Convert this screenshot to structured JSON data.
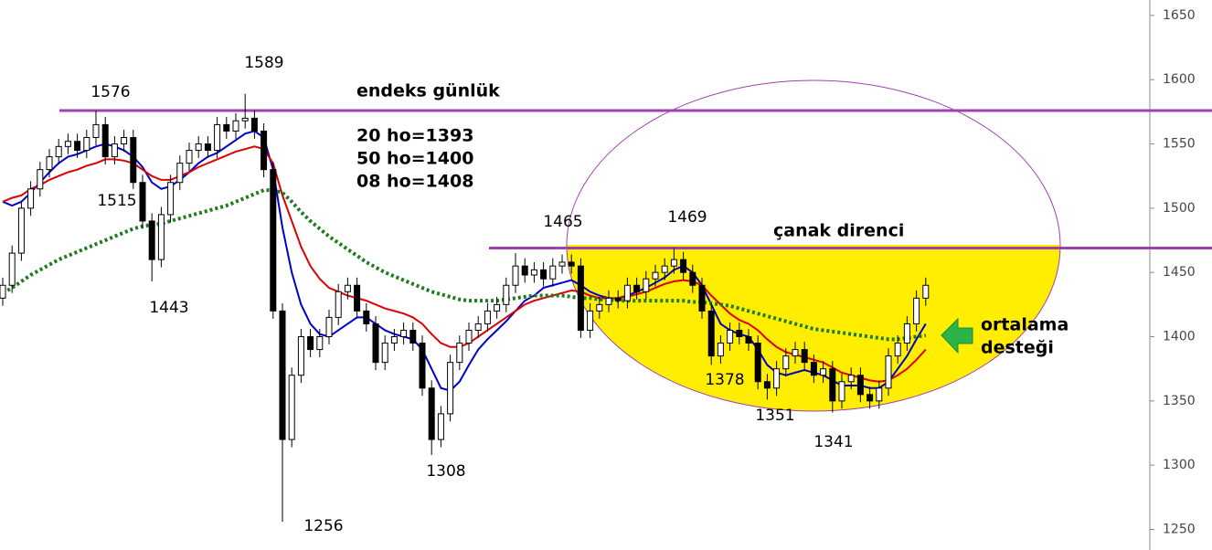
{
  "chart_data": {
    "type": "candlestick",
    "open": [
      1430,
      1440,
      1465,
      1500,
      1515,
      1530,
      1540,
      1548,
      1552,
      1545,
      1555,
      1565,
      1540,
      1550,
      1555,
      1520,
      1490,
      1460,
      1495,
      1520,
      1535,
      1545,
      1550,
      1545,
      1565,
      1560,
      1568,
      1570,
      1560,
      1530,
      1420,
      1320,
      1370,
      1400,
      1390,
      1400,
      1415,
      1435,
      1440,
      1420,
      1410,
      1380,
      1395,
      1400,
      1405,
      1395,
      1360,
      1320,
      1340,
      1380,
      1395,
      1405,
      1410,
      1420,
      1425,
      1440,
      1455,
      1448,
      1452,
      1445,
      1455,
      1458,
      1455,
      1405,
      1420,
      1425,
      1430,
      1428,
      1440,
      1435,
      1445,
      1450,
      1455,
      1460,
      1450,
      1440,
      1420,
      1385,
      1395,
      1405,
      1400,
      1395,
      1365,
      1360,
      1375,
      1385,
      1390,
      1380,
      1370,
      1375,
      1350,
      1365,
      1370,
      1355,
      1350,
      1360,
      1385,
      1395,
      1410,
      1430
    ],
    "high": [
      1446,
      1471,
      1506,
      1521,
      1536,
      1546,
      1554,
      1558,
      1558,
      1561,
      1576,
      1571,
      1556,
      1561,
      1561,
      1526,
      1496,
      1501,
      1526,
      1541,
      1551,
      1556,
      1556,
      1571,
      1571,
      1574,
      1589,
      1576,
      1566,
      1536,
      1426,
      1376,
      1406,
      1406,
      1406,
      1421,
      1441,
      1446,
      1446,
      1426,
      1416,
      1401,
      1406,
      1411,
      1411,
      1401,
      1366,
      1346,
      1386,
      1401,
      1411,
      1416,
      1426,
      1431,
      1446,
      1465,
      1461,
      1458,
      1458,
      1461,
      1464,
      1464,
      1461,
      1426,
      1431,
      1436,
      1436,
      1446,
      1446,
      1451,
      1456,
      1461,
      1469,
      1466,
      1456,
      1446,
      1426,
      1401,
      1411,
      1411,
      1406,
      1401,
      1371,
      1381,
      1391,
      1396,
      1396,
      1386,
      1381,
      1381,
      1371,
      1376,
      1376,
      1361,
      1366,
      1391,
      1401,
      1416,
      1436,
      1446
    ],
    "low": [
      1424,
      1434,
      1459,
      1494,
      1509,
      1524,
      1534,
      1542,
      1539,
      1539,
      1549,
      1534,
      1534,
      1544,
      1515,
      1484,
      1443,
      1454,
      1489,
      1514,
      1529,
      1539,
      1539,
      1539,
      1554,
      1554,
      1562,
      1554,
      1524,
      1414,
      1256,
      1314,
      1364,
      1384,
      1384,
      1394,
      1409,
      1429,
      1414,
      1404,
      1374,
      1374,
      1389,
      1394,
      1389,
      1354,
      1308,
      1314,
      1334,
      1374,
      1389,
      1399,
      1404,
      1414,
      1419,
      1434,
      1442,
      1442,
      1439,
      1439,
      1449,
      1449,
      1399,
      1399,
      1414,
      1419,
      1422,
      1422,
      1429,
      1429,
      1439,
      1444,
      1449,
      1444,
      1434,
      1414,
      1378,
      1379,
      1389,
      1394,
      1389,
      1359,
      1351,
      1354,
      1369,
      1379,
      1374,
      1364,
      1364,
      1341,
      1344,
      1359,
      1349,
      1344,
      1344,
      1354,
      1379,
      1389,
      1404,
      1424
    ],
    "close": [
      1440,
      1465,
      1500,
      1515,
      1530,
      1540,
      1548,
      1552,
      1545,
      1555,
      1565,
      1540,
      1550,
      1555,
      1520,
      1490,
      1460,
      1495,
      1520,
      1535,
      1545,
      1550,
      1545,
      1565,
      1560,
      1568,
      1570,
      1560,
      1530,
      1420,
      1320,
      1370,
      1400,
      1390,
      1400,
      1415,
      1435,
      1440,
      1420,
      1410,
      1380,
      1395,
      1400,
      1405,
      1395,
      1360,
      1320,
      1340,
      1380,
      1395,
      1405,
      1410,
      1420,
      1425,
      1440,
      1455,
      1448,
      1452,
      1445,
      1455,
      1458,
      1455,
      1405,
      1420,
      1425,
      1430,
      1428,
      1440,
      1435,
      1445,
      1450,
      1455,
      1460,
      1450,
      1440,
      1420,
      1385,
      1395,
      1405,
      1400,
      1395,
      1365,
      1360,
      1375,
      1385,
      1390,
      1380,
      1370,
      1375,
      1350,
      1365,
      1370,
      1355,
      1350,
      1360,
      1385,
      1395,
      1410,
      1430,
      1440
    ],
    "up_color": "#ffffff",
    "down_color": "#000000",
    "ma": [
      {
        "color": "#0000cc",
        "dashed": false,
        "values": [
          1505,
          1502,
          1505,
          1512,
          1520,
          1528,
          1535,
          1540,
          1542,
          1545,
          1548,
          1550,
          1548,
          1545,
          1540,
          1532,
          1520,
          1515,
          1517,
          1522,
          1528,
          1535,
          1540,
          1543,
          1548,
          1553,
          1558,
          1560,
          1555,
          1530,
          1485,
          1450,
          1425,
          1410,
          1402,
          1400,
          1405,
          1410,
          1415,
          1415,
          1410,
          1405,
          1402,
          1400,
          1398,
          1390,
          1375,
          1360,
          1358,
          1365,
          1378,
          1390,
          1398,
          1405,
          1412,
          1420,
          1428,
          1432,
          1438,
          1440,
          1442,
          1444,
          1440,
          1435,
          1432,
          1430,
          1430,
          1432,
          1435,
          1438,
          1442,
          1446,
          1452,
          1455,
          1450,
          1440,
          1425,
          1410,
          1405,
          1402,
          1400,
          1390,
          1378,
          1372,
          1370,
          1372,
          1374,
          1372,
          1370,
          1366,
          1362,
          1362,
          1362,
          1360,
          1360,
          1365,
          1375,
          1385,
          1398,
          1410
        ]
      },
      {
        "color": "#dd0000",
        "dashed": false,
        "values": [
          1505,
          1508,
          1510,
          1515,
          1518,
          1522,
          1525,
          1528,
          1530,
          1533,
          1535,
          1538,
          1538,
          1537,
          1535,
          1530,
          1525,
          1522,
          1522,
          1525,
          1528,
          1532,
          1535,
          1538,
          1541,
          1544,
          1546,
          1548,
          1546,
          1535,
          1510,
          1490,
          1470,
          1455,
          1445,
          1438,
          1435,
          1432,
          1430,
          1428,
          1425,
          1422,
          1420,
          1418,
          1415,
          1410,
          1402,
          1395,
          1392,
          1392,
          1395,
          1400,
          1405,
          1410,
          1415,
          1420,
          1425,
          1428,
          1430,
          1432,
          1434,
          1436,
          1435,
          1432,
          1430,
          1430,
          1430,
          1431,
          1433,
          1435,
          1438,
          1441,
          1443,
          1444,
          1443,
          1440,
          1432,
          1425,
          1418,
          1413,
          1410,
          1405,
          1398,
          1392,
          1388,
          1386,
          1384,
          1382,
          1380,
          1376,
          1372,
          1370,
          1368,
          1366,
          1365,
          1366,
          1370,
          1375,
          1382,
          1390
        ]
      },
      {
        "color": "#1e7b1e",
        "dashed": true,
        "values": [
          1434,
          1438,
          1443,
          1448,
          1452,
          1456,
          1460,
          1463,
          1466,
          1469,
          1472,
          1475,
          1478,
          1481,
          1484,
          1486,
          1487,
          1488,
          1490,
          1492,
          1494,
          1496,
          1498,
          1500,
          1502,
          1505,
          1508,
          1511,
          1514,
          1514,
          1512,
          1505,
          1497,
          1490,
          1484,
          1478,
          1473,
          1468,
          1463,
          1458,
          1454,
          1450,
          1447,
          1444,
          1441,
          1438,
          1435,
          1433,
          1431,
          1429,
          1428,
          1428,
          1428,
          1428,
          1429,
          1430,
          1431,
          1432,
          1432,
          1432,
          1432,
          1431,
          1430,
          1430,
          1429,
          1429,
          1428,
          1428,
          1428,
          1428,
          1428,
          1428,
          1428,
          1428,
          1427,
          1427,
          1426,
          1425,
          1424,
          1422,
          1420,
          1418,
          1416,
          1414,
          1412,
          1410,
          1408,
          1406,
          1405,
          1404,
          1403,
          1402,
          1401,
          1400,
          1399,
          1398,
          1398,
          1399,
          1400,
          1401
        ]
      }
    ],
    "hlines": [
      {
        "value": 1576,
        "color": "#a040b0"
      },
      {
        "value": 1469,
        "color": "#a040b0"
      }
    ],
    "ylim": [
      1234,
      1662
    ],
    "yticks": [
      1250,
      1300,
      1350,
      1400,
      1450,
      1500,
      1550,
      1600,
      1650
    ],
    "annotations": [
      "1576",
      "1589",
      "1515",
      "1443",
      "1465",
      "1469",
      "1256",
      "1308",
      "1378",
      "1351",
      "1341"
    ],
    "notes": {
      "title": "endeks günlük",
      "lines": [
        "20 ho=1393",
        "50 ho=1400",
        "08 ho=1408"
      ],
      "resistance": "çanak direnci",
      "support": [
        "ortalama",
        "desteği"
      ]
    }
  }
}
